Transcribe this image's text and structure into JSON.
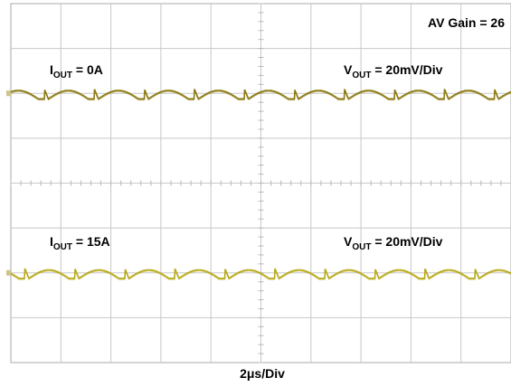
{
  "chart_data": {
    "type": "line",
    "title": "",
    "gain_label": "AV Gain = 26",
    "xlabel": "2μs/Div",
    "time_per_div_us": 2,
    "grid": true,
    "divisions": {
      "x": 10,
      "y": 8
    },
    "traces": [
      {
        "load_label": {
          "main": "I",
          "sub": "OUT",
          "rest": " = 0A"
        },
        "scale_label": {
          "main": "V",
          "sub": "OUT",
          "rest": " = 20mV/Div"
        },
        "volts_per_div_mv": 20,
        "ripple_period_div": 1.0,
        "ripple_phase_div": 0.67,
        "ripple_pp_div": 0.22,
        "color": "#8c7a14"
      },
      {
        "load_label": {
          "main": "I",
          "sub": "OUT",
          "rest": " = 15A"
        },
        "scale_label": {
          "main": "V",
          "sub": "OUT",
          "rest": " = 20mV/Div"
        },
        "volts_per_div_mv": 20,
        "ripple_period_div": 1.0,
        "ripple_phase_div": 0.28,
        "ripple_pp_div": 0.22,
        "color": "#b8aa1c"
      }
    ]
  },
  "colors": {
    "grid": "#c8c8c8",
    "frame": "#aaaaaa",
    "marker": "#ccc488"
  }
}
